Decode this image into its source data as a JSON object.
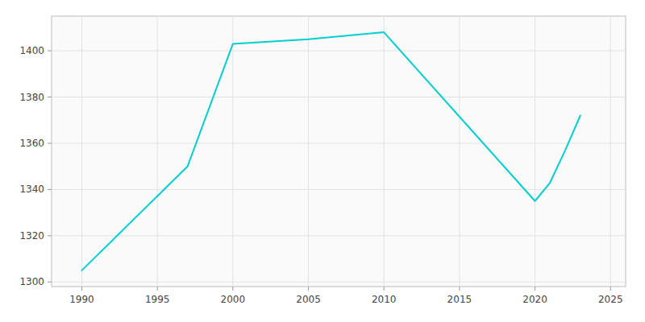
{
  "chart_data": {
    "type": "line",
    "x": [
      1990,
      1997,
      2000,
      2005,
      2010,
      2020,
      2021,
      2022,
      2023
    ],
    "values": [
      1305,
      1350,
      1403,
      1405,
      1408,
      1335,
      1343,
      1357,
      1372
    ],
    "color": "#00CED1",
    "xlim": [
      1988,
      2026
    ],
    "ylim": [
      1298,
      1415
    ],
    "xticks": [
      1990,
      1995,
      2000,
      2005,
      2010,
      2015,
      2020,
      2025
    ],
    "yticks": [
      1300,
      1320,
      1340,
      1360,
      1380,
      1400
    ],
    "grid": true
  }
}
